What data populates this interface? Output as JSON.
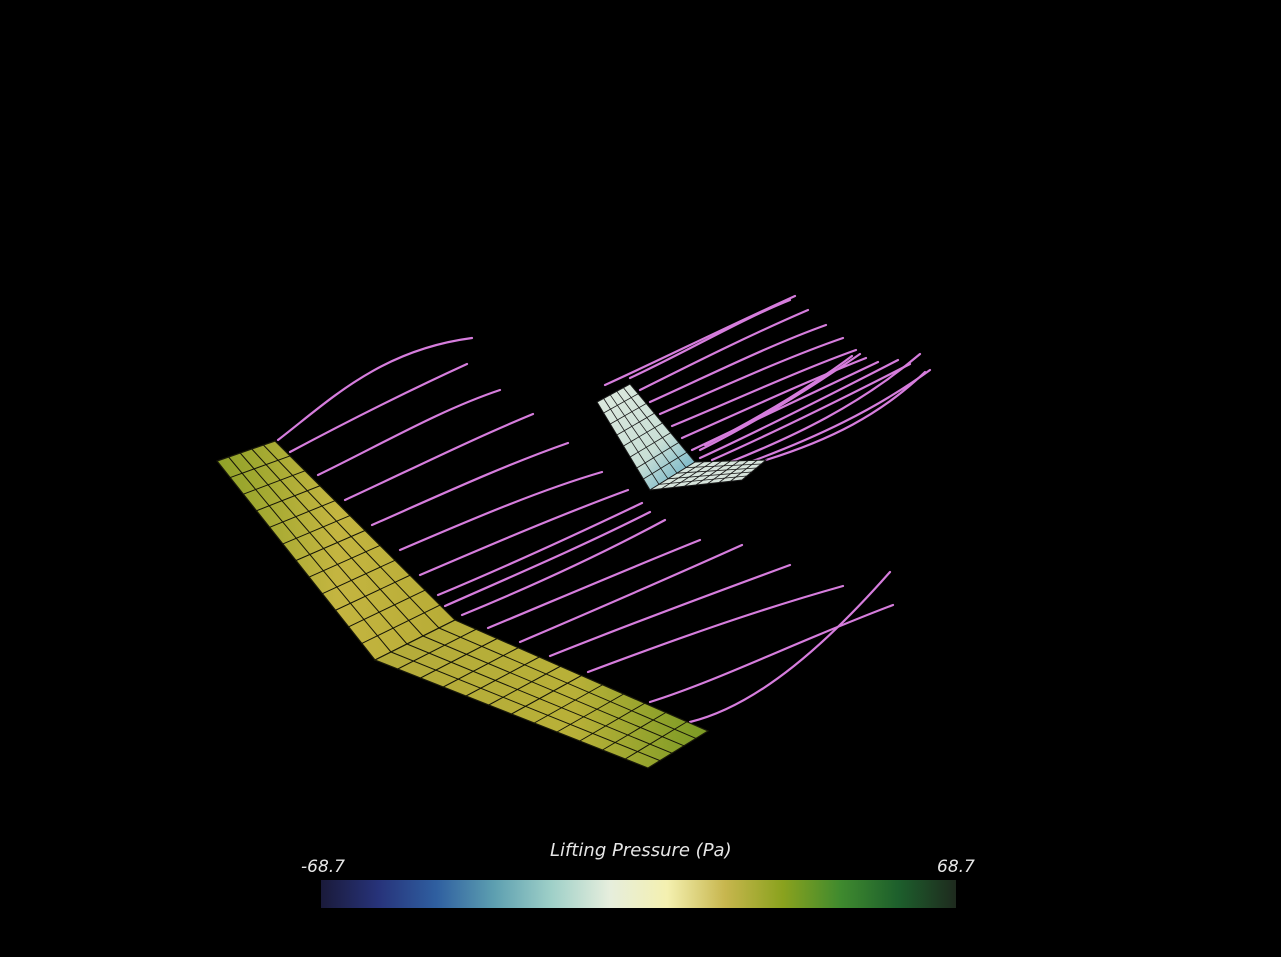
{
  "colorbar": {
    "title": "Lifting Pressure (Pa)",
    "min_label": "-68.7",
    "max_label": "68.7",
    "range": [
      -68.7,
      68.7
    ],
    "stops": [
      "#1a1a3a",
      "#27337a",
      "#2f5fa0",
      "#5d9fb0",
      "#9fd0c8",
      "#e6eedd",
      "#f4f0b0",
      "#c7b64e",
      "#8aa21e",
      "#3f8a2e",
      "#1d5f2c",
      "#1e2a1e"
    ]
  },
  "colors": {
    "background": "#000000",
    "streamline": "#d67ddd",
    "wing_surface": "#b8b034",
    "wing_surface_low": "#6a9a26",
    "tail_surface": "#d9e8df",
    "tail_surface_low": "#5aa9c6",
    "mesh_line": "#111111"
  }
}
